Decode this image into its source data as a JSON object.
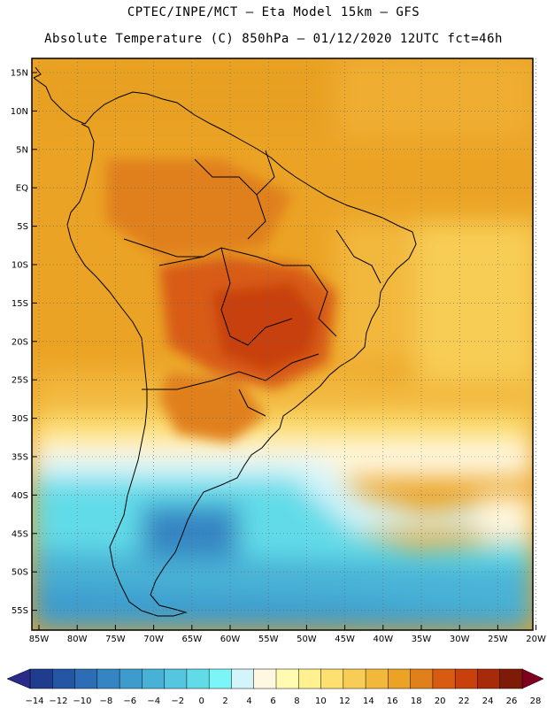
{
  "header": {
    "line1": "CPTEC/INPE/MCT –  Eta Model 15km – GFS",
    "line2": "Absolute Temperature (C) 850hPa – 01/12/2020 12UTC fct=46h"
  },
  "map": {
    "lat_labels": [
      "15N",
      "10N",
      "5N",
      "EQ",
      "5S",
      "10S",
      "15S",
      "20S",
      "25S",
      "30S",
      "35S",
      "40S",
      "45S",
      "50S",
      "55S"
    ],
    "lon_labels": [
      "85W",
      "80W",
      "75W",
      "70W",
      "65W",
      "60W",
      "55W",
      "50W",
      "45W",
      "40W",
      "35W",
      "30W",
      "25W",
      "20W"
    ],
    "grid": "dotted"
  },
  "colorbar": {
    "labels": [
      "-14",
      "-12",
      "-10",
      "-8",
      "-6",
      "-4",
      "-2",
      "0",
      "2",
      "4",
      "6",
      "8",
      "10",
      "12",
      "14",
      "16",
      "18",
      "20",
      "22",
      "24",
      "26",
      "28"
    ],
    "colors": [
      "#1f3c8f",
      "#2456a4",
      "#2c6db5",
      "#3585c2",
      "#3e9ccd",
      "#48b2d6",
      "#55c6df",
      "#62dbe8",
      "#7bf5f7",
      "#d4f4fb",
      "#fff8e0",
      "#fffbb0",
      "#fff090",
      "#fde070",
      "#f8cd55",
      "#f2b83c",
      "#eba325",
      "#e0801a",
      "#d85b12",
      "#c8400c",
      "#a72a0a",
      "#7e1a08"
    ],
    "low_arrow_color": "#2a2a88",
    "high_arrow_color": "#800020"
  }
}
